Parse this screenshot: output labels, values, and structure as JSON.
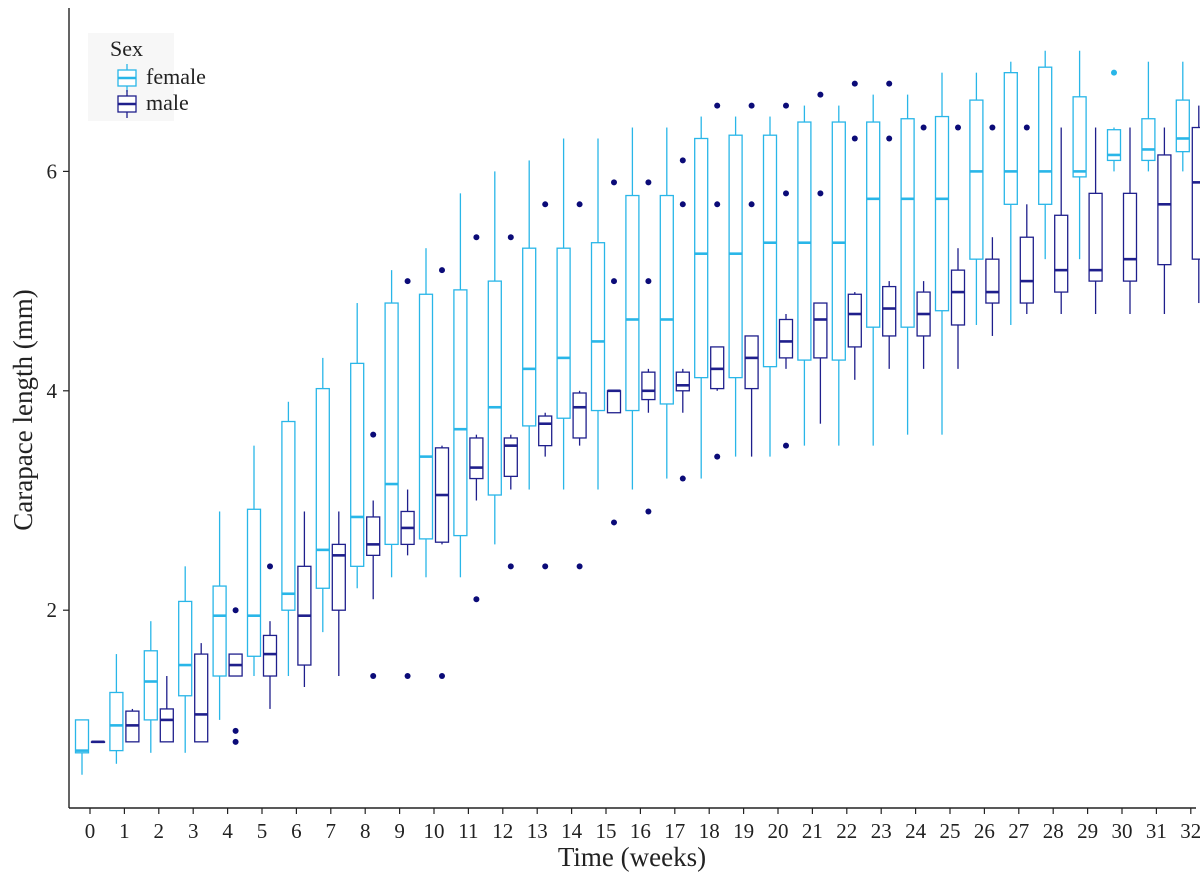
{
  "chart_data": {
    "type": "boxplot",
    "title": "",
    "xlabel": "Time (weeks)",
    "ylabel": "Carapace length (mm)",
    "ylim": [
      0.0,
      7.2
    ],
    "yticks": [
      2,
      4,
      6
    ],
    "categories": [
      "0",
      "1",
      "2",
      "3",
      "4",
      "5",
      "6",
      "7",
      "8",
      "9",
      "10",
      "11",
      "12",
      "13",
      "14",
      "15",
      "16",
      "17",
      "18",
      "19",
      "20",
      "21",
      "22",
      "23",
      "24",
      "25",
      "26",
      "27",
      "28",
      "29",
      "30",
      "31",
      "32"
    ],
    "grid": false,
    "legend": {
      "title": "Sex",
      "placement": "top-left"
    },
    "series": [
      {
        "name": "female",
        "color": "#29b6e8",
        "boxes": [
          {
            "w": 0,
            "min": 0.5,
            "q1": 0.7,
            "med": 0.72,
            "q3": 1.0,
            "max": 1.0,
            "outliers": []
          },
          {
            "w": 1,
            "min": 0.6,
            "q1": 0.72,
            "med": 0.95,
            "q3": 1.25,
            "max": 1.6,
            "outliers": []
          },
          {
            "w": 2,
            "min": 0.7,
            "q1": 1.0,
            "med": 1.35,
            "q3": 1.63,
            "max": 1.9,
            "outliers": []
          },
          {
            "w": 3,
            "min": 0.7,
            "q1": 1.22,
            "med": 1.5,
            "q3": 2.08,
            "max": 2.4,
            "outliers": []
          },
          {
            "w": 4,
            "min": 1.0,
            "q1": 1.4,
            "med": 1.95,
            "q3": 2.22,
            "max": 2.9,
            "outliers": []
          },
          {
            "w": 5,
            "min": 1.4,
            "q1": 1.58,
            "med": 1.95,
            "q3": 2.92,
            "max": 3.5,
            "outliers": []
          },
          {
            "w": 6,
            "min": 1.4,
            "q1": 2.0,
            "med": 2.15,
            "q3": 3.72,
            "max": 3.9,
            "outliers": []
          },
          {
            "w": 7,
            "min": 1.8,
            "q1": 2.2,
            "med": 2.55,
            "q3": 4.02,
            "max": 4.3,
            "outliers": []
          },
          {
            "w": 8,
            "min": 2.2,
            "q1": 2.4,
            "med": 2.85,
            "q3": 4.25,
            "max": 4.8,
            "outliers": []
          },
          {
            "w": 9,
            "min": 2.3,
            "q1": 2.6,
            "med": 3.15,
            "q3": 4.8,
            "max": 5.1,
            "outliers": []
          },
          {
            "w": 10,
            "min": 2.3,
            "q1": 2.65,
            "med": 3.4,
            "q3": 4.88,
            "max": 5.3,
            "outliers": []
          },
          {
            "w": 11,
            "min": 2.3,
            "q1": 2.68,
            "med": 3.65,
            "q3": 4.92,
            "max": 5.8,
            "outliers": []
          },
          {
            "w": 12,
            "min": 2.6,
            "q1": 3.05,
            "med": 3.85,
            "q3": 5.0,
            "max": 6.0,
            "outliers": []
          },
          {
            "w": 13,
            "min": 3.1,
            "q1": 3.68,
            "med": 4.2,
            "q3": 5.3,
            "max": 6.1,
            "outliers": []
          },
          {
            "w": 14,
            "min": 3.1,
            "q1": 3.75,
            "med": 4.3,
            "q3": 5.3,
            "max": 6.3,
            "outliers": []
          },
          {
            "w": 15,
            "min": 3.1,
            "q1": 3.82,
            "med": 4.45,
            "q3": 5.35,
            "max": 6.3,
            "outliers": []
          },
          {
            "w": 16,
            "min": 3.1,
            "q1": 3.82,
            "med": 4.65,
            "q3": 5.78,
            "max": 6.4,
            "outliers": []
          },
          {
            "w": 17,
            "min": 3.2,
            "q1": 3.88,
            "med": 4.65,
            "q3": 5.78,
            "max": 6.4,
            "outliers": []
          },
          {
            "w": 18,
            "min": 3.2,
            "q1": 4.12,
            "med": 5.25,
            "q3": 6.3,
            "max": 6.5,
            "outliers": []
          },
          {
            "w": 19,
            "min": 3.4,
            "q1": 4.12,
            "med": 5.25,
            "q3": 6.33,
            "max": 6.5,
            "outliers": []
          },
          {
            "w": 20,
            "min": 3.4,
            "q1": 4.22,
            "med": 5.35,
            "q3": 6.33,
            "max": 6.5,
            "outliers": []
          },
          {
            "w": 21,
            "min": 3.5,
            "q1": 4.28,
            "med": 5.35,
            "q3": 6.45,
            "max": 6.6,
            "outliers": []
          },
          {
            "w": 22,
            "min": 3.5,
            "q1": 4.28,
            "med": 5.35,
            "q3": 6.45,
            "max": 6.6,
            "outliers": []
          },
          {
            "w": 23,
            "min": 3.5,
            "q1": 4.58,
            "med": 5.75,
            "q3": 6.45,
            "max": 6.7,
            "outliers": []
          },
          {
            "w": 24,
            "min": 3.6,
            "q1": 4.58,
            "med": 5.75,
            "q3": 6.48,
            "max": 6.7,
            "outliers": []
          },
          {
            "w": 25,
            "min": 3.6,
            "q1": 4.73,
            "med": 5.75,
            "q3": 6.5,
            "max": 6.9,
            "outliers": []
          },
          {
            "w": 26,
            "min": 4.6,
            "q1": 5.2,
            "med": 6.0,
            "q3": 6.65,
            "max": 6.9,
            "outliers": []
          },
          {
            "w": 27,
            "min": 4.6,
            "q1": 5.7,
            "med": 6.0,
            "q3": 6.9,
            "max": 7.0,
            "outliers": []
          },
          {
            "w": 28,
            "min": 5.2,
            "q1": 5.7,
            "med": 6.0,
            "q3": 6.95,
            "max": 7.1,
            "outliers": []
          },
          {
            "w": 29,
            "min": 5.2,
            "q1": 5.95,
            "med": 6.0,
            "q3": 6.68,
            "max": 7.1,
            "outliers": []
          },
          {
            "w": 30,
            "min": 6.0,
            "q1": 6.1,
            "med": 6.15,
            "q3": 6.38,
            "max": 6.4,
            "outliers": [
              6.9
            ]
          },
          {
            "w": 31,
            "min": 6.0,
            "q1": 6.1,
            "med": 6.2,
            "q3": 6.48,
            "max": 7.0,
            "outliers": []
          },
          {
            "w": 32,
            "min": 6.0,
            "q1": 6.18,
            "med": 6.3,
            "q3": 6.65,
            "max": 7.0,
            "outliers": []
          }
        ]
      },
      {
        "name": "male",
        "color": "#1f1f8c",
        "outlier_color": "#0b0b78",
        "boxes": [
          {
            "w": 0,
            "min": 0.8,
            "q1": 0.8,
            "med": 0.8,
            "q3": 0.8,
            "max": 0.8,
            "outliers": []
          },
          {
            "w": 1,
            "min": 0.8,
            "q1": 0.8,
            "med": 0.95,
            "q3": 1.08,
            "max": 1.1,
            "outliers": []
          },
          {
            "w": 2,
            "min": 0.8,
            "q1": 0.8,
            "med": 1.0,
            "q3": 1.1,
            "max": 1.4,
            "outliers": []
          },
          {
            "w": 3,
            "min": 0.8,
            "q1": 0.8,
            "med": 1.05,
            "q3": 1.6,
            "max": 1.7,
            "outliers": []
          },
          {
            "w": 4,
            "min": 1.4,
            "q1": 1.4,
            "med": 1.5,
            "q3": 1.6,
            "max": 1.6,
            "outliers": [
              2.0,
              0.9,
              0.8
            ]
          },
          {
            "w": 5,
            "min": 1.1,
            "q1": 1.4,
            "med": 1.6,
            "q3": 1.77,
            "max": 1.9,
            "outliers": [
              2.4
            ]
          },
          {
            "w": 6,
            "min": 1.3,
            "q1": 1.5,
            "med": 1.95,
            "q3": 2.4,
            "max": 2.9,
            "outliers": []
          },
          {
            "w": 7,
            "min": 1.4,
            "q1": 2.0,
            "med": 2.5,
            "q3": 2.6,
            "max": 2.9,
            "outliers": []
          },
          {
            "w": 8,
            "min": 2.1,
            "q1": 2.5,
            "med": 2.6,
            "q3": 2.85,
            "max": 3.0,
            "outliers": [
              3.6,
              1.4
            ]
          },
          {
            "w": 9,
            "min": 2.5,
            "q1": 2.6,
            "med": 2.75,
            "q3": 2.9,
            "max": 3.1,
            "outliers": [
              5.0,
              1.4
            ]
          },
          {
            "w": 10,
            "min": 2.6,
            "q1": 2.62,
            "med": 3.05,
            "q3": 3.48,
            "max": 3.5,
            "outliers": [
              5.1,
              1.4
            ]
          },
          {
            "w": 11,
            "min": 3.0,
            "q1": 3.2,
            "med": 3.3,
            "q3": 3.57,
            "max": 3.6,
            "outliers": [
              5.4,
              2.1
            ]
          },
          {
            "w": 12,
            "min": 3.1,
            "q1": 3.22,
            "med": 3.5,
            "q3": 3.57,
            "max": 3.6,
            "outliers": [
              5.4,
              2.4
            ]
          },
          {
            "w": 13,
            "min": 3.4,
            "q1": 3.5,
            "med": 3.7,
            "q3": 3.77,
            "max": 3.8,
            "outliers": [
              5.7,
              2.4
            ]
          },
          {
            "w": 14,
            "min": 3.5,
            "q1": 3.57,
            "med": 3.85,
            "q3": 3.98,
            "max": 4.0,
            "outliers": [
              5.7,
              2.4
            ]
          },
          {
            "w": 15,
            "min": 3.8,
            "q1": 3.8,
            "med": 4.0,
            "q3": 4.0,
            "max": 4.0,
            "outliers": [
              5.9,
              5.0,
              2.8
            ]
          },
          {
            "w": 16,
            "min": 3.8,
            "q1": 3.92,
            "med": 4.0,
            "q3": 4.17,
            "max": 4.2,
            "outliers": [
              5.9,
              5.0,
              2.9
            ]
          },
          {
            "w": 17,
            "min": 3.8,
            "q1": 4.0,
            "med": 4.05,
            "q3": 4.17,
            "max": 4.2,
            "outliers": [
              6.1,
              5.7,
              3.2
            ]
          },
          {
            "w": 18,
            "min": 4.0,
            "q1": 4.02,
            "med": 4.2,
            "q3": 4.4,
            "max": 4.4,
            "outliers": [
              6.6,
              5.7,
              3.4
            ]
          },
          {
            "w": 19,
            "min": 3.4,
            "q1": 4.02,
            "med": 4.3,
            "q3": 4.5,
            "max": 4.5,
            "outliers": [
              6.6,
              5.7
            ]
          },
          {
            "w": 20,
            "min": 4.2,
            "q1": 4.3,
            "med": 4.45,
            "q3": 4.65,
            "max": 4.7,
            "outliers": [
              6.6,
              5.8,
              3.5
            ]
          },
          {
            "w": 21,
            "min": 3.7,
            "q1": 4.3,
            "med": 4.65,
            "q3": 4.8,
            "max": 4.8,
            "outliers": [
              6.7,
              5.8
            ]
          },
          {
            "w": 22,
            "min": 4.1,
            "q1": 4.4,
            "med": 4.7,
            "q3": 4.88,
            "max": 4.9,
            "outliers": [
              6.8,
              6.3
            ]
          },
          {
            "w": 23,
            "min": 4.2,
            "q1": 4.5,
            "med": 4.75,
            "q3": 4.95,
            "max": 5.0,
            "outliers": [
              6.8,
              6.3
            ]
          },
          {
            "w": 24,
            "min": 4.2,
            "q1": 4.5,
            "med": 4.7,
            "q3": 4.9,
            "max": 5.0,
            "outliers": [
              6.4
            ]
          },
          {
            "w": 25,
            "min": 4.2,
            "q1": 4.6,
            "med": 4.9,
            "q3": 5.1,
            "max": 5.3,
            "outliers": [
              6.4
            ]
          },
          {
            "w": 26,
            "min": 4.5,
            "q1": 4.8,
            "med": 4.9,
            "q3": 5.2,
            "max": 5.4,
            "outliers": [
              6.4
            ]
          },
          {
            "w": 27,
            "min": 4.7,
            "q1": 4.8,
            "med": 5.0,
            "q3": 5.4,
            "max": 5.7,
            "outliers": [
              6.4
            ]
          },
          {
            "w": 28,
            "min": 4.7,
            "q1": 4.9,
            "med": 5.1,
            "q3": 5.6,
            "max": 6.4,
            "outliers": []
          },
          {
            "w": 29,
            "min": 4.7,
            "q1": 5.0,
            "med": 5.1,
            "q3": 5.8,
            "max": 6.4,
            "outliers": []
          },
          {
            "w": 30,
            "min": 4.7,
            "q1": 5.0,
            "med": 5.2,
            "q3": 5.8,
            "max": 6.4,
            "outliers": []
          },
          {
            "w": 31,
            "min": 4.7,
            "q1": 5.15,
            "med": 5.7,
            "q3": 6.15,
            "max": 6.4,
            "outliers": []
          },
          {
            "w": 32,
            "min": 4.8,
            "q1": 5.2,
            "med": 5.9,
            "q3": 6.4,
            "max": 6.6,
            "outliers": []
          }
        ]
      }
    ]
  }
}
